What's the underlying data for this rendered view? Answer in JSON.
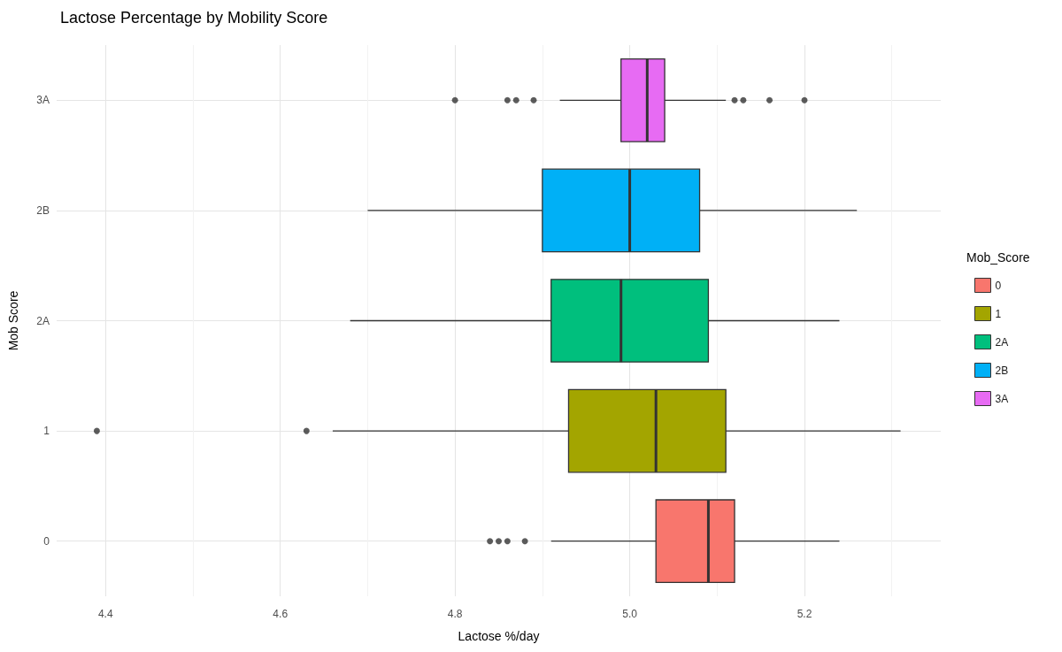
{
  "chart_data": {
    "type": "box",
    "title": "Lactose Percentage by Mobility Score",
    "xlabel": "Lactose %/day",
    "ylabel": "Mob Score",
    "legend_title": "Mob_Score",
    "orientation": "horizontal",
    "categories": [
      "3A",
      "2B",
      "2A",
      "1",
      "0"
    ],
    "series": [
      {
        "name": "0",
        "color": "#f8766d",
        "boxes": [
          null,
          null,
          null,
          null,
          {
            "low": 4.91,
            "q1": 5.03,
            "median": 5.09,
            "q3": 5.12,
            "high": 5.24,
            "outliers": [
              4.84,
              4.85,
              4.86,
              4.88
            ]
          }
        ]
      },
      {
        "name": "1",
        "color": "#a3a500",
        "boxes": [
          null,
          null,
          null,
          {
            "low": 4.66,
            "q1": 4.93,
            "median": 5.03,
            "q3": 5.11,
            "high": 5.31,
            "outliers": [
              4.39,
              4.63
            ]
          },
          null
        ]
      },
      {
        "name": "2A",
        "color": "#00bf7d",
        "boxes": [
          null,
          null,
          {
            "low": 4.68,
            "q1": 4.91,
            "median": 4.99,
            "q3": 5.09,
            "high": 5.24
          },
          null,
          null
        ]
      },
      {
        "name": "2B",
        "color": "#00b0f6",
        "boxes": [
          null,
          {
            "low": 4.7,
            "q1": 4.9,
            "median": 5.0,
            "q3": 5.08,
            "high": 5.26
          },
          null,
          null,
          null
        ]
      },
      {
        "name": "3A",
        "color": "#e76bf3",
        "boxes": [
          {
            "low": 4.92,
            "q1": 4.99,
            "median": 5.02,
            "q3": 5.04,
            "high": 5.11,
            "outliers": [
              4.8,
              4.86,
              4.87,
              4.89,
              5.12,
              5.13,
              5.16,
              5.2
            ]
          },
          null,
          null,
          null,
          null
        ]
      }
    ],
    "xlim": [
      4.344,
      5.356
    ],
    "xticks": [
      4.4,
      {
        "value": 4.5,
        "label": null
      },
      4.6,
      {
        "value": 4.7,
        "label": null
      },
      4.8,
      {
        "value": 4.9,
        "label": null
      },
      {
        "value": 5,
        "label": "5.0"
      },
      {
        "value": 5.1,
        "label": null
      },
      5.2,
      {
        "value": 5.3,
        "label": null
      }
    ],
    "grid": true,
    "legend": "right"
  }
}
